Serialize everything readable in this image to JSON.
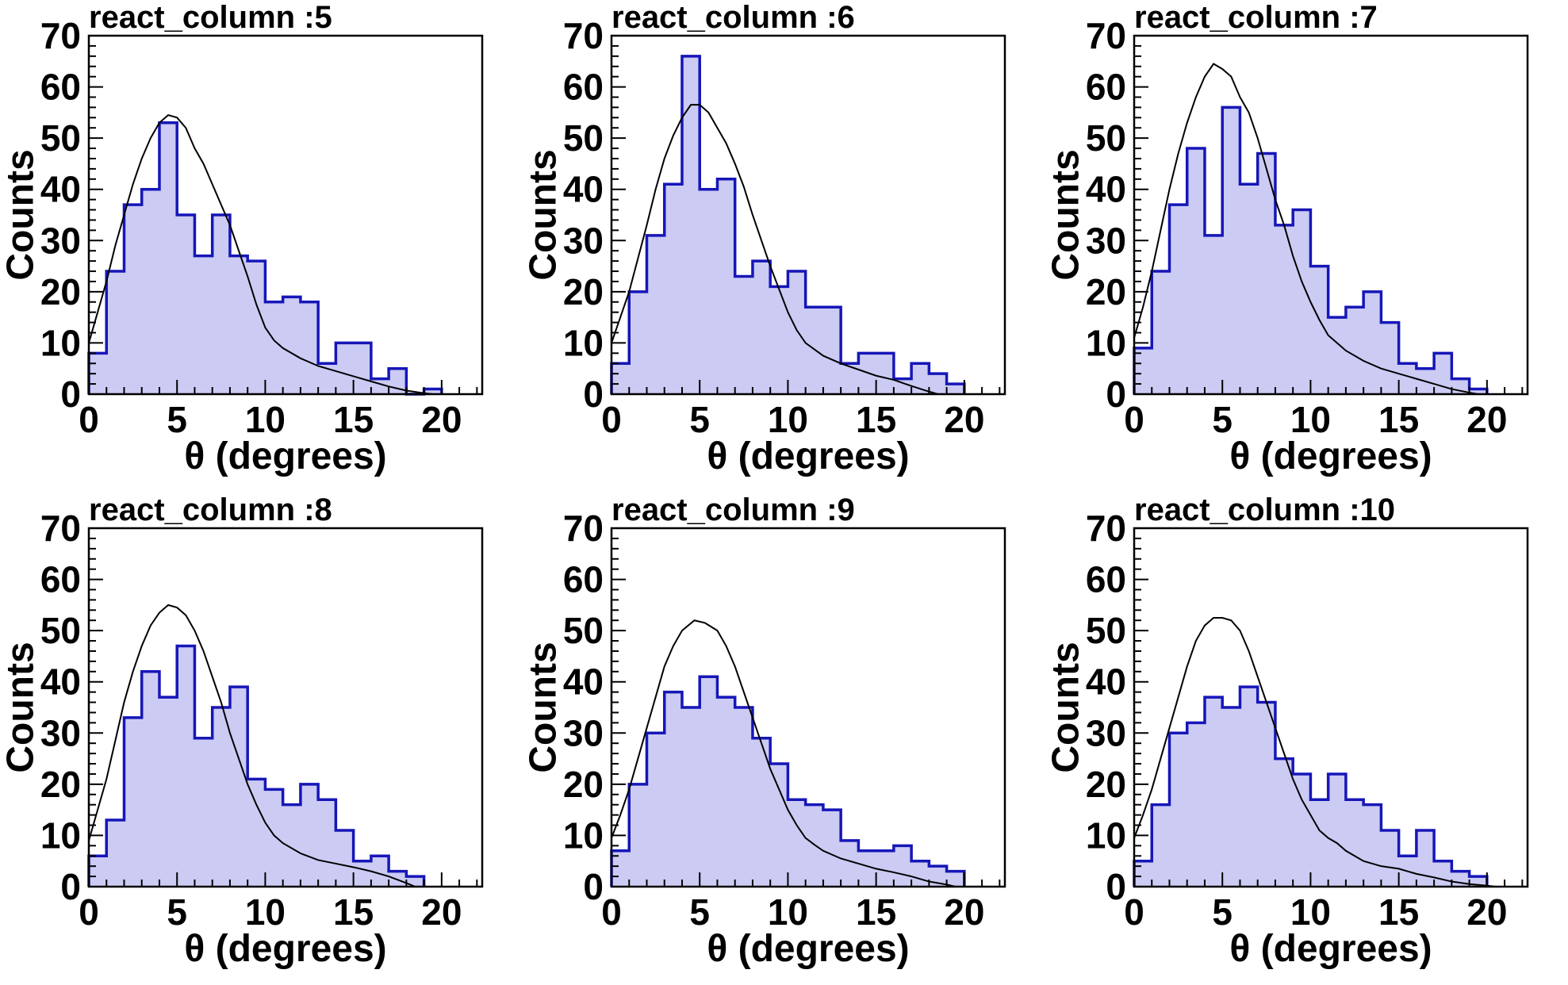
{
  "page": {
    "background": "#ffffff"
  },
  "colors": {
    "hist_fill": "#cbcbf4",
    "hist_line": "#1616b8",
    "curve_line": "#000000",
    "frame": "#000000",
    "text": "#000000"
  },
  "axes": {
    "ylabel": "Counts",
    "xlabel": "θ (degrees)",
    "xlim": [
      0,
      22.3
    ],
    "ylim": [
      0,
      70
    ],
    "x_major_ticks": [
      0,
      5,
      10,
      15,
      20
    ],
    "x_minor_step": 1,
    "y_major_ticks": [
      0,
      10,
      20,
      30,
      40,
      50,
      60,
      70
    ],
    "y_minor_step": 2,
    "grid": false,
    "legend": false
  },
  "chart_data": {
    "type": "bar",
    "subtype": "histogram-with-fit-curve",
    "bin_start": 0,
    "bin_width": 1,
    "xlabel": "θ (degrees)",
    "ylabel": "Counts",
    "ylim": [
      0,
      70
    ],
    "panels": [
      {
        "title": "react_column :5",
        "counts": [
          8,
          24,
          37,
          40,
          53,
          35,
          27,
          35,
          27,
          26,
          18,
          19,
          18,
          6,
          10,
          10,
          3,
          5,
          0,
          1,
          0,
          0
        ],
        "curve": {
          "x": [
            0,
            0.5,
            1,
            1.5,
            2,
            2.5,
            3,
            3.5,
            4,
            4.5,
            5,
            5.5,
            6,
            6.5,
            7,
            7.5,
            8,
            8.5,
            9,
            9.5,
            10,
            10.5,
            11,
            12,
            13,
            14,
            15,
            16,
            17,
            18,
            19,
            19.5
          ],
          "y": [
            10,
            16,
            22,
            29,
            35,
            41,
            46,
            50,
            53,
            54.5,
            54,
            52,
            48,
            45,
            41,
            37,
            33,
            28,
            23,
            17.5,
            13,
            10.5,
            9,
            7,
            5.5,
            4.5,
            3.5,
            2.5,
            1.5,
            0.7,
            0.2,
            0
          ]
        }
      },
      {
        "title": "react_column :6",
        "counts": [
          6,
          20,
          31,
          41,
          66,
          40,
          42,
          23,
          26,
          21,
          24,
          17,
          17,
          6,
          8,
          8,
          3,
          6,
          4,
          2,
          0,
          0
        ],
        "curve": {
          "x": [
            0,
            0.5,
            1,
            1.5,
            2,
            2.5,
            3,
            3.5,
            4,
            4.5,
            5,
            5.5,
            6,
            6.5,
            7,
            7.5,
            8,
            8.5,
            9,
            9.5,
            10,
            10.5,
            11,
            12,
            13,
            14,
            15,
            16,
            17,
            18,
            18.5
          ],
          "y": [
            10,
            15,
            20,
            26.5,
            33,
            40,
            46,
            50.5,
            54,
            56.5,
            56.5,
            55,
            52,
            49,
            45,
            40.5,
            35,
            30,
            25,
            20.5,
            16,
            12.5,
            10,
            7.5,
            6,
            4.8,
            3.6,
            2.8,
            1.6,
            0.5,
            0
          ]
        }
      },
      {
        "title": "react_column :7",
        "counts": [
          9,
          24,
          37,
          48,
          31,
          56,
          41,
          47,
          33,
          36,
          25,
          15,
          17,
          20,
          14,
          6,
          5,
          8,
          3,
          1,
          0,
          0
        ],
        "curve": {
          "x": [
            0,
            0.5,
            1,
            1.5,
            2,
            2.5,
            3,
            3.5,
            4,
            4.5,
            5,
            5.5,
            6,
            6.5,
            7,
            7.5,
            8,
            8.5,
            9,
            9.5,
            10,
            10.5,
            11,
            11.5,
            12,
            13,
            14,
            15,
            16,
            17,
            18,
            19,
            19.5
          ],
          "y": [
            11,
            17,
            24,
            32,
            40,
            47,
            53,
            58,
            62,
            64.5,
            63.5,
            62,
            58,
            55,
            50,
            44,
            38,
            33,
            27,
            22,
            18,
            14.5,
            11.5,
            10,
            8.5,
            6.5,
            5,
            4,
            3,
            2,
            1,
            0.3,
            0
          ]
        }
      },
      {
        "title": "react_column :8",
        "counts": [
          6,
          13,
          33,
          42,
          37,
          47,
          29,
          35,
          39,
          21,
          19,
          16,
          20,
          17,
          11,
          5,
          6,
          3,
          2,
          0,
          0,
          0
        ],
        "curve": {
          "x": [
            0,
            0.5,
            1,
            1.5,
            2,
            2.5,
            3,
            3.5,
            4,
            4.5,
            5,
            5.5,
            6,
            6.5,
            7,
            7.5,
            8,
            8.5,
            9,
            9.5,
            10,
            10.5,
            11,
            12,
            13,
            14,
            15,
            16,
            17,
            18,
            18.5
          ],
          "y": [
            9,
            15,
            21,
            28.5,
            36,
            42,
            47,
            51,
            53.5,
            55,
            54.5,
            53,
            50,
            46,
            41,
            36,
            30,
            25,
            20,
            16,
            12.5,
            10,
            8.5,
            6.5,
            5.2,
            4.5,
            3.8,
            3,
            2,
            0.7,
            0
          ]
        }
      },
      {
        "title": "react_column :9",
        "counts": [
          7,
          20,
          30,
          38,
          35,
          41,
          37,
          35,
          29,
          24,
          17,
          16,
          15,
          9,
          7,
          7,
          8,
          5,
          4,
          3,
          0,
          0
        ],
        "curve": {
          "x": [
            0,
            0.5,
            1,
            1.5,
            2,
            2.5,
            3,
            3.5,
            4,
            4.7,
            5.3,
            6,
            6.5,
            7,
            7.5,
            8,
            8.5,
            9,
            9.5,
            10,
            10.5,
            11,
            11.5,
            12,
            13,
            14,
            15,
            16,
            17,
            18,
            19,
            19.5
          ],
          "y": [
            9.5,
            14,
            19,
            25,
            31,
            37,
            43,
            47,
            50,
            52,
            51.5,
            50,
            47,
            43,
            38,
            33,
            28,
            23,
            19,
            15,
            12,
            9.5,
            8.2,
            7,
            5.5,
            4.5,
            3.5,
            2.8,
            2,
            1,
            0.4,
            0
          ]
        }
      },
      {
        "title": "react_column :10",
        "counts": [
          5,
          16,
          30,
          32,
          37,
          35,
          39,
          36,
          25,
          22,
          17,
          22,
          17,
          16,
          11,
          6,
          11,
          5,
          3,
          2,
          0,
          0
        ],
        "curve": {
          "x": [
            0,
            0.5,
            1,
            1.5,
            2,
            2.5,
            3,
            3.5,
            4,
            4.5,
            5,
            5.5,
            6,
            6.5,
            7,
            7.5,
            8,
            8.5,
            9,
            9.5,
            10,
            10.5,
            11,
            11.5,
            12,
            13,
            14,
            15,
            16,
            17,
            18,
            19,
            20,
            20.5
          ],
          "y": [
            9.5,
            14,
            19,
            25,
            31,
            37,
            43,
            48,
            51,
            52.5,
            52.5,
            52,
            50,
            46,
            41,
            36,
            31,
            26,
            21,
            17,
            14,
            11,
            9.5,
            8.5,
            7,
            5,
            4,
            3.5,
            2.5,
            1.8,
            1,
            0.5,
            0.2,
            0
          ]
        }
      }
    ]
  }
}
